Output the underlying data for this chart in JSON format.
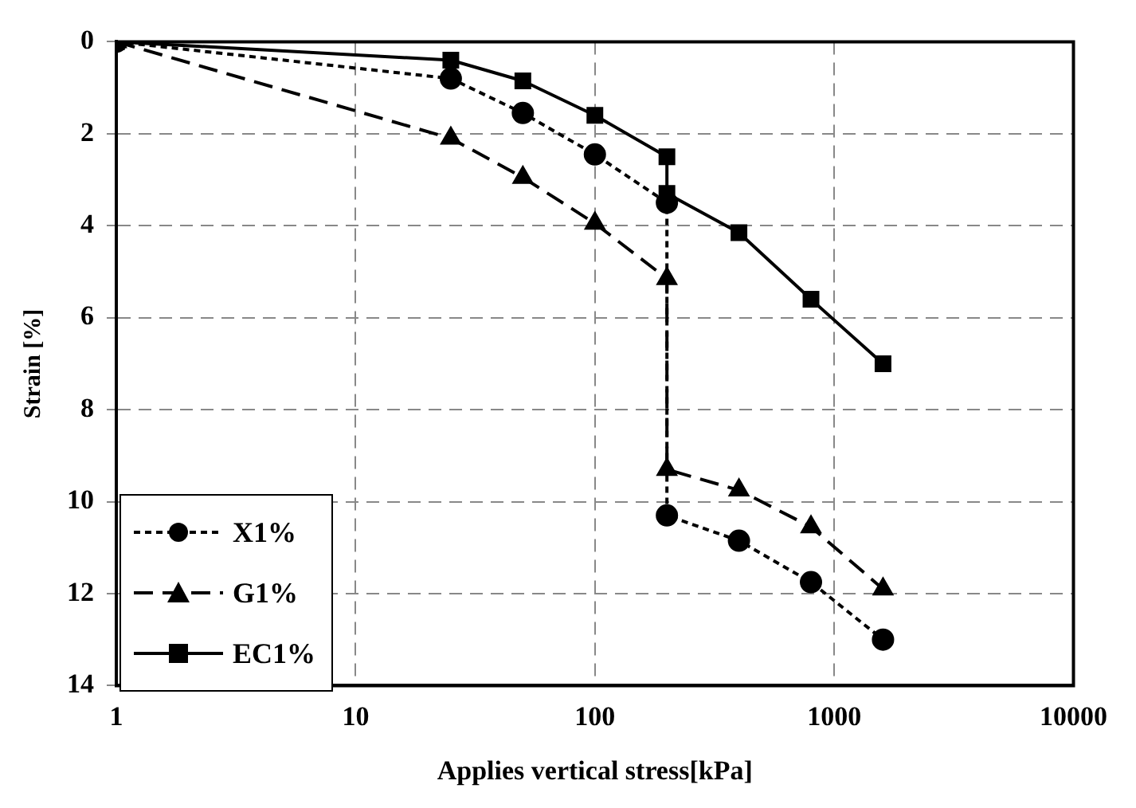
{
  "chart_data": {
    "type": "line",
    "xlabel": "Applies vertical stress[kPa]",
    "ylabel": "Strain [%]",
    "log": "x",
    "xlim": [
      1,
      10000
    ],
    "xticks": [
      1,
      10,
      100,
      1000,
      10000
    ],
    "ylim": [
      14,
      0
    ],
    "yticks": [
      0,
      2,
      4,
      6,
      8,
      10,
      12,
      14
    ],
    "grid": true,
    "legend": "bottom left",
    "x": [
      1,
      25,
      50,
      100,
      200,
      200,
      400,
      800,
      1600
    ],
    "series": [
      {
        "name": "X1%",
        "color": "#000000",
        "marker": "circle",
        "line_style": "dotted",
        "values": [
          0,
          0.8,
          1.55,
          2.45,
          3.5,
          10.3,
          10.85,
          11.75,
          13.0
        ]
      },
      {
        "name": "G1%",
        "color": "#000000",
        "marker": "triangle",
        "line_style": "dashed",
        "values": [
          0,
          2.1,
          2.95,
          3.95,
          5.15,
          9.3,
          9.75,
          10.55,
          11.9
        ]
      },
      {
        "name": "EC1%",
        "color": "#000000",
        "marker": "square",
        "line_style": "solid",
        "values": [
          0,
          0.4,
          0.85,
          1.6,
          2.5,
          3.3,
          4.15,
          5.6,
          7.0
        ]
      }
    ]
  }
}
